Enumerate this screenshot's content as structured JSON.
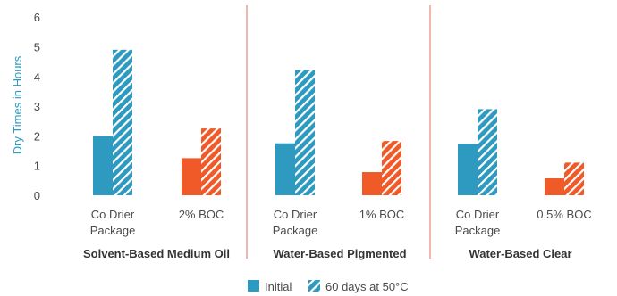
{
  "chart_data": {
    "type": "bar",
    "ylabel": "Dry Times in Hours",
    "ylim": [
      0,
      6
    ],
    "yticks": [
      0,
      1,
      2,
      3,
      4,
      5,
      6
    ],
    "grid": false,
    "legend_position": "bottom-center",
    "groups": [
      {
        "name": "Solvent-Based Medium Oil",
        "categories": [
          {
            "label": [
              "Co Drier",
              "Package"
            ],
            "initial": 2.0,
            "aged": 4.9
          },
          {
            "label": [
              "2% BOC"
            ],
            "initial": 1.25,
            "aged": 2.25
          }
        ]
      },
      {
        "name": "Water-Based Pigmented",
        "categories": [
          {
            "label": [
              "Co Drier",
              "Package"
            ],
            "initial": 1.75,
            "aged": 4.22
          },
          {
            "label": [
              "1% BOC"
            ],
            "initial": 0.78,
            "aged": 1.83
          }
        ]
      },
      {
        "name": "Water-Based Clear",
        "categories": [
          {
            "label": [
              "Co Drier",
              "Package"
            ],
            "initial": 1.73,
            "aged": 2.9
          },
          {
            "label": [
              "0.5% BOC"
            ],
            "initial": 0.57,
            "aged": 1.1
          }
        ]
      }
    ],
    "series": [
      {
        "key": "initial",
        "name": "Initial",
        "pattern": "solid"
      },
      {
        "key": "aged",
        "name": "60 days at 50°C",
        "pattern": "hatched"
      }
    ],
    "colors": {
      "control": "#2e9abf",
      "boc": "#f05a28",
      "ylabel": "#2e9abf",
      "separator": "#e07050"
    }
  }
}
